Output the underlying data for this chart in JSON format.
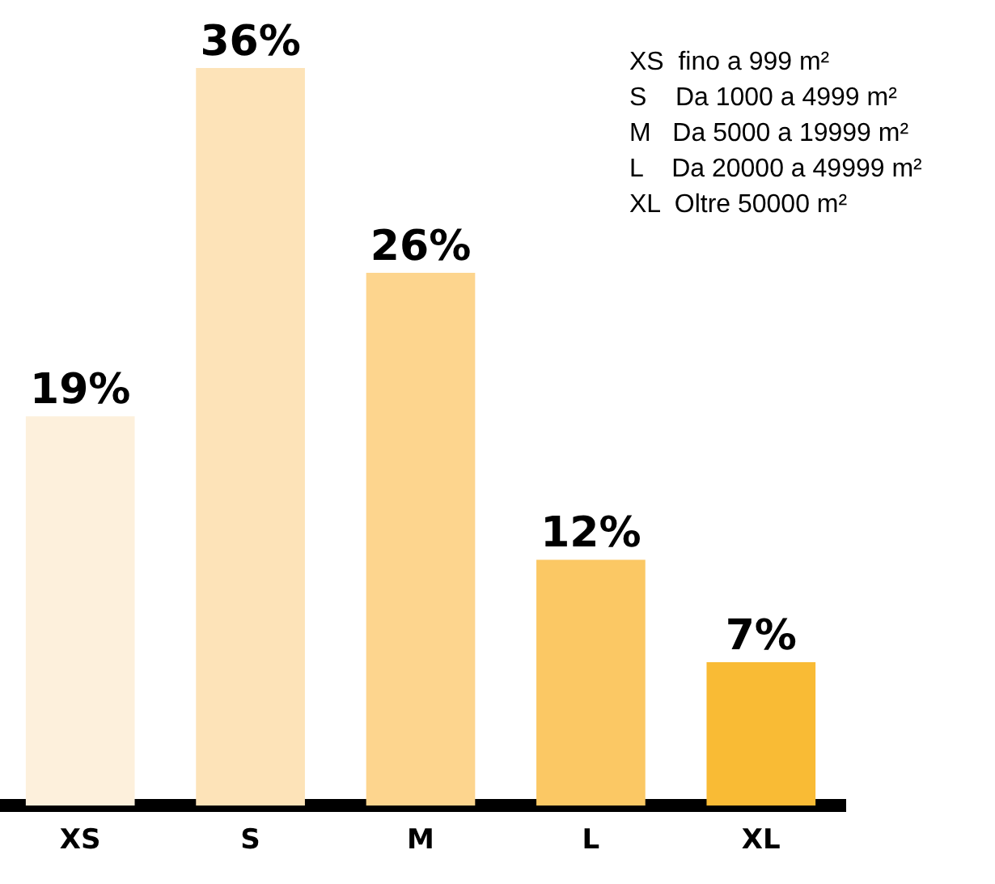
{
  "chart_data": {
    "type": "bar",
    "categories": [
      "XS",
      "S",
      "M",
      "L",
      "XL"
    ],
    "values": [
      19,
      36,
      26,
      12,
      7
    ],
    "colors": [
      "#fdf0dc",
      "#fde3b8",
      "#fdd58e",
      "#fbc864",
      "#f9bb35"
    ],
    "value_labels": [
      "19%",
      "36%",
      "26%",
      "12%",
      "7%"
    ],
    "annotations": [
      "XS  fino a 999 m²",
      "S    Da 1000 a 4999 m²",
      "M   Da 5000 a 19999 m²",
      "L    Da 20000 a 49999 m²",
      "XL  Oltre 50000 m²"
    ],
    "grid": false,
    "legend": false
  }
}
